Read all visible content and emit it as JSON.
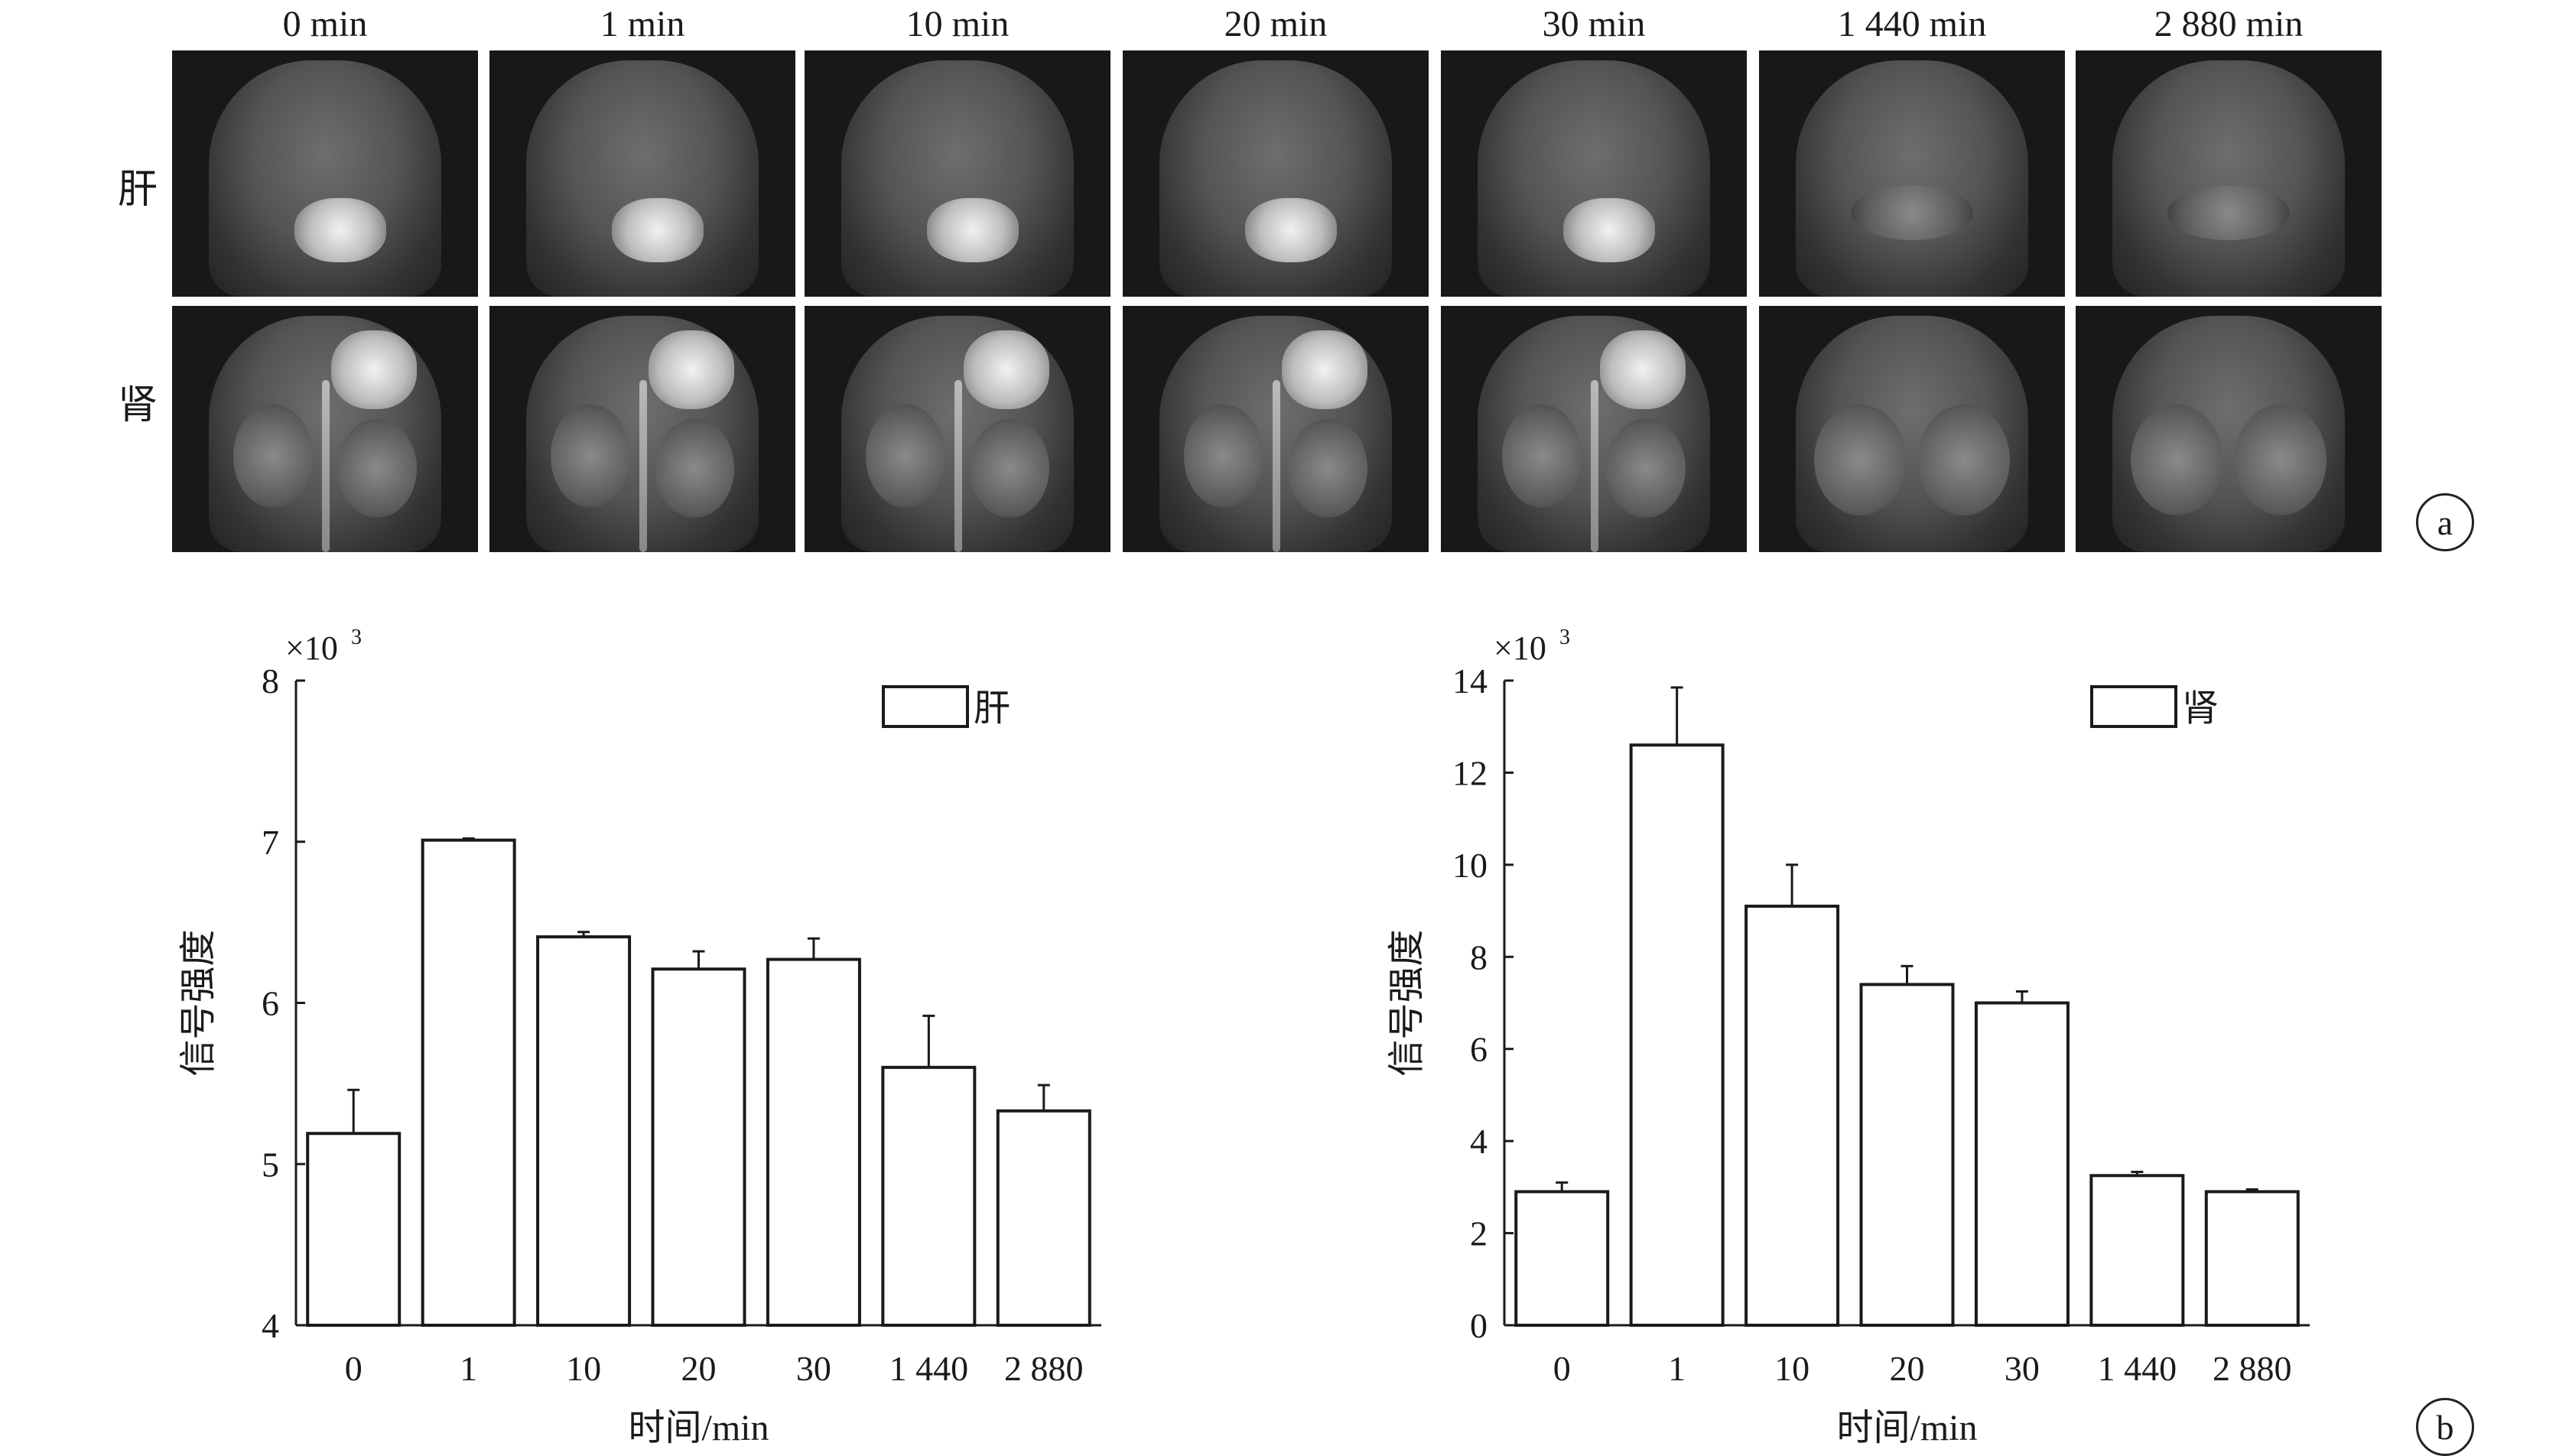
{
  "panel_a": {
    "time_labels": [
      "0 min",
      "1 min",
      "10 min",
      "20 min",
      "30 min",
      "1 440 min",
      "2 880 min"
    ],
    "rows": [
      {
        "label": "肝",
        "key": "liver"
      },
      {
        "label": "肾",
        "key": "kidney"
      }
    ],
    "marker": "a"
  },
  "panel_b": {
    "marker": "b"
  },
  "chart_data": [
    {
      "type": "bar",
      "categories": [
        "0",
        "1",
        "10",
        "20",
        "30",
        "1 440",
        "2 880"
      ],
      "series": [
        {
          "name": "肝",
          "values": [
            5.19,
            7.01,
            6.41,
            6.21,
            6.27,
            5.6,
            5.33
          ],
          "errors": [
            0.27,
            0.01,
            0.03,
            0.11,
            0.13,
            0.32,
            0.16
          ]
        }
      ],
      "ylim": [
        4,
        8
      ],
      "yticks": [
        4,
        5,
        6,
        7,
        8
      ],
      "xlabel": "时间/min",
      "ylabel": "信号强度",
      "multiplier": "×10",
      "multiplier_exp": "3",
      "legend": "top-right",
      "grid": false
    },
    {
      "type": "bar",
      "categories": [
        "0",
        "1",
        "10",
        "20",
        "30",
        "1 440",
        "2 880"
      ],
      "series": [
        {
          "name": "肾",
          "values": [
            2.9,
            12.6,
            9.1,
            7.4,
            7.0,
            3.25,
            2.9
          ],
          "errors": [
            0.2,
            1.25,
            0.9,
            0.4,
            0.25,
            0.08,
            0.05
          ]
        }
      ],
      "ylim": [
        0,
        14
      ],
      "yticks": [
        0,
        2,
        4,
        6,
        8,
        10,
        12,
        14
      ],
      "xlabel": "时间/min",
      "ylabel": "信号强度",
      "multiplier": "×10",
      "multiplier_exp": "3",
      "legend": "top-right",
      "grid": false
    }
  ]
}
